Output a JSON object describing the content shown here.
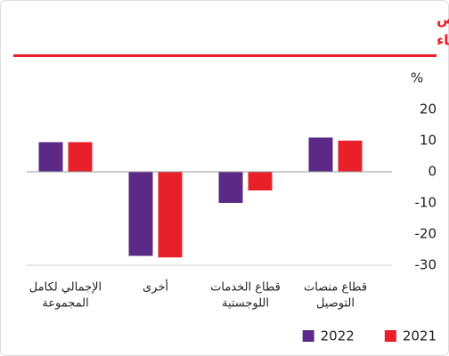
{
  "chart_data": {
    "type": "bar",
    "title": [
      "هامش الأرباح قبل دفع الفوائد والزكاة ومخصص",
      "الاستهلاك والإطفاء"
    ],
    "y_unit": "%",
    "categories": [
      [
        "الإجمالي لكامل",
        "المجموعة"
      ],
      [
        "أخرى"
      ],
      [
        "قطاع الخدمات",
        "اللوجستية"
      ],
      [
        "قطاع منصات",
        "التوصيل"
      ]
    ],
    "series": [
      {
        "name": "2022",
        "color": "#5b2a86",
        "values": [
          9.5,
          -27,
          -10,
          11
        ]
      },
      {
        "name": "2021",
        "color": "#e8202a",
        "values": [
          9.5,
          -27.5,
          -6,
          10
        ]
      }
    ],
    "ylim": [
      -30,
      20
    ],
    "yticks": [
      20,
      10,
      0,
      -10,
      -20,
      -30
    ]
  }
}
